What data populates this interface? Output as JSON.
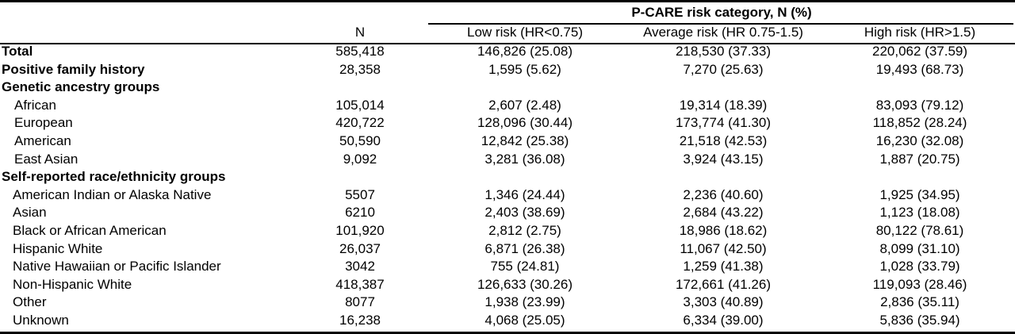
{
  "header": {
    "group_title": "P-CARE risk category, N (%)",
    "columns": [
      "N",
      "Low risk (HR<0.75)",
      "Average risk (HR 0.75-1.5)",
      "High risk (HR>1.5)"
    ]
  },
  "rows": [
    {
      "label": "Total",
      "n": "585,418",
      "low": "146,826 (25.08)",
      "avg": "218,530 (37.33)",
      "high": "220,062 (37.59)"
    },
    {
      "label": "Positive family history",
      "n": "28,358",
      "low": "1,595 (5.62)",
      "avg": "7,270 (25.63)",
      "high": "19,493 (68.73)"
    },
    {
      "label": "Genetic ancestry groups"
    },
    {
      "label": "African",
      "n": "105,014",
      "low": "2,607 (2.48)",
      "avg": "19,314 (18.39)",
      "high": "83,093 (79.12)"
    },
    {
      "label": "European",
      "n": "420,722",
      "low": "128,096 (30.44)",
      "avg": "173,774 (41.30)",
      "high": "118,852 (28.24)"
    },
    {
      "label": "American",
      "n": "50,590",
      "low": "12,842 (25.38)",
      "avg": "21,518 (42.53)",
      "high": "16,230 (32.08)"
    },
    {
      "label": "East Asian",
      "n": "9,092",
      "low": "3,281 (36.08)",
      "avg": "3,924 (43.15)",
      "high": "1,887 (20.75)"
    },
    {
      "label": "Self-reported race/ethnicity groups"
    },
    {
      "label": "American Indian or Alaska Native",
      "n": "5507",
      "low": "1,346 (24.44)",
      "avg": "2,236 (40.60)",
      "high": "1,925 (34.95)"
    },
    {
      "label": "Asian",
      "n": "6210",
      "low": "2,403 (38.69)",
      "avg": "2,684 (43.22)",
      "high": "1,123 (18.08)"
    },
    {
      "label": "Black or African American",
      "n": "101,920",
      "low": "2,812 (2.75)",
      "avg": "18,986 (18.62)",
      "high": "80,122 (78.61)"
    },
    {
      "label": "Hispanic White",
      "n": "26,037",
      "low": "6,871 (26.38)",
      "avg": "11,067 (42.50)",
      "high": "8,099 (31.10)"
    },
    {
      "label": "Native Hawaiian or Pacific Islander",
      "n": "3042",
      "low": "755 (24.81)",
      "avg": "1,259 (41.38)",
      "high": "1,028 (33.79)"
    },
    {
      "label": "Non-Hispanic White",
      "n": "418,387",
      "low": "126,633 (30.26)",
      "avg": "172,661 (41.26)",
      "high": "119,093 (28.46)"
    },
    {
      "label": "Other",
      "n": "8077",
      "low": "1,938 (23.99)",
      "avg": "3,303 (40.89)",
      "high": "2,836 (35.11)"
    },
    {
      "label": "Unknown",
      "n": "16,238",
      "low": "4,068 (25.05)",
      "avg": "6,334 (39.00)",
      "high": "5,836 (35.94)"
    }
  ]
}
